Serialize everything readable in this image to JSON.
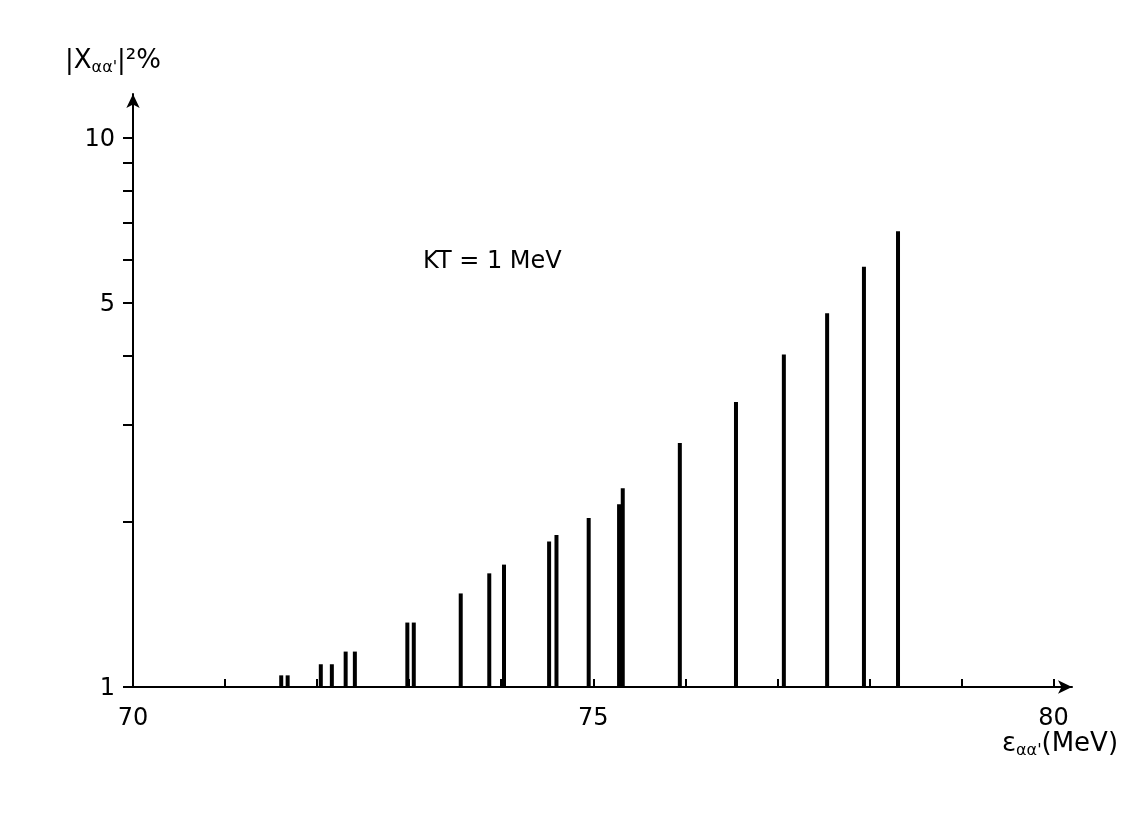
{
  "chart_data": {
    "type": "bar",
    "xlabel": "ε$_{αα'}$(MeV)",
    "ylabel": "|X$_{αα'}$|²%",
    "annotations": [
      "KT = 1 MeV"
    ],
    "x": [
      71.61,
      71.68,
      72.04,
      72.16,
      72.31,
      72.41,
      72.98,
      73.05,
      73.56,
      73.87,
      74.03,
      74.52,
      74.6,
      74.95,
      75.28,
      75.32,
      75.94,
      76.55,
      77.07,
      77.54,
      77.94,
      78.31
    ],
    "values": [
      1.05,
      1.05,
      1.1,
      1.1,
      1.16,
      1.16,
      1.31,
      1.31,
      1.48,
      1.61,
      1.67,
      1.84,
      1.89,
      2.03,
      2.15,
      2.3,
      2.78,
      3.3,
      4.03,
      4.79,
      5.82,
      6.75
    ],
    "color": "#000000",
    "log": "y",
    "grid": false,
    "xlim": [
      70,
      80.2
    ],
    "xticks": [
      70,
      {
        "value": 71,
        "label": null
      },
      {
        "value": 72,
        "label": null
      },
      {
        "value": 73,
        "label": null
      },
      {
        "value": 74,
        "label": null
      },
      75,
      {
        "value": 76,
        "label": null
      },
      {
        "value": 77,
        "label": null
      },
      {
        "value": 78,
        "label": null
      },
      {
        "value": 79,
        "label": null
      },
      80
    ],
    "ylim": [
      1,
      12
    ],
    "yticks": [
      1,
      {
        "value": 2,
        "label": null
      },
      {
        "value": 3,
        "label": null
      },
      {
        "value": 4,
        "label": null
      },
      5,
      {
        "value": 6,
        "label": null
      },
      {
        "value": 7,
        "label": null
      },
      {
        "value": 8,
        "label": null
      },
      {
        "value": 9,
        "label": null
      },
      10
    ]
  }
}
